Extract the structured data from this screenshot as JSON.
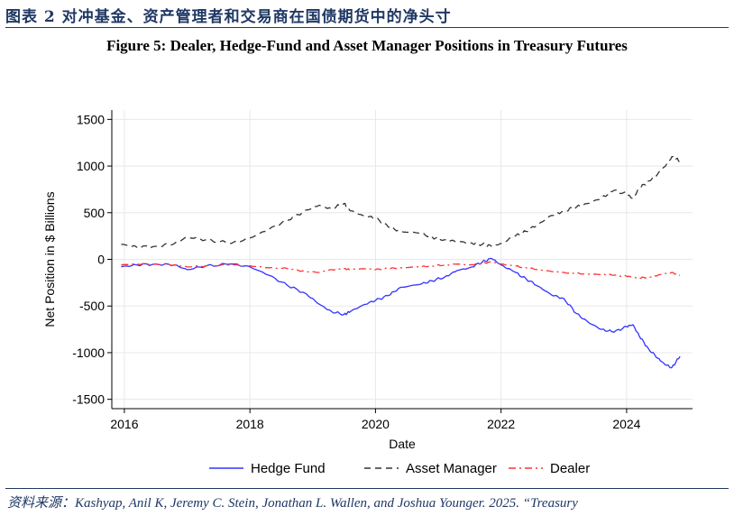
{
  "header": {
    "text": "图表 2  对冲基金、资产管理者和交易商在国债期货中的净头寸"
  },
  "figure_title": "Figure 5: Dealer, Hedge-Fund and Asset Manager Positions in Treasury Futures",
  "source_text": "资料来源：Kashyap, Anil K, Jeremy C. Stein, Jonathan L. Wallen, and Joshua Younger. 2025. “Treasury",
  "colors": {
    "header": "#1f3864",
    "hedge_fund": "#3333ff",
    "asset_manager": "#333333",
    "dealer": "#ff3333",
    "grid": "#e8e8e8"
  },
  "chart_data": {
    "type": "line",
    "xlabel": "Date",
    "ylabel": "Net Position in $ Billions",
    "xlim": [
      2015.8,
      2025.05
    ],
    "ylim": [
      -1600,
      1600
    ],
    "x_ticks": [
      2016,
      2018,
      2020,
      2022,
      2024
    ],
    "y_ticks": [
      1500,
      1000,
      500,
      0,
      -500,
      -1000,
      -1500
    ],
    "x_tick_labels": [
      "2016",
      "2018",
      "2020",
      "2022",
      "2024"
    ],
    "y_tick_labels": [
      "1500",
      "1000",
      "500",
      "0",
      "-500",
      "-1000",
      "-1500"
    ],
    "grid": true,
    "legend_position": "bottom",
    "series": [
      {
        "name": "Hedge Fund",
        "style": "solid",
        "x": [
          2015.95,
          2016.2,
          2016.5,
          2016.8,
          2017.0,
          2017.3,
          2017.7,
          2018.0,
          2018.3,
          2018.6,
          2018.9,
          2019.1,
          2019.3,
          2019.5,
          2019.6,
          2019.8,
          2020.0,
          2020.2,
          2020.4,
          2020.7,
          2020.9,
          2021.1,
          2021.3,
          2021.5,
          2021.7,
          2021.85,
          2022.0,
          2022.2,
          2022.4,
          2022.6,
          2022.8,
          2023.0,
          2023.2,
          2023.4,
          2023.6,
          2023.8,
          2024.0,
          2024.1,
          2024.2,
          2024.35,
          2024.5,
          2024.6,
          2024.72,
          2024.85
        ],
        "values": [
          -80,
          -60,
          -50,
          -60,
          -110,
          -70,
          -50,
          -80,
          -170,
          -280,
          -370,
          -480,
          -560,
          -590,
          -560,
          -490,
          -440,
          -390,
          -300,
          -270,
          -230,
          -190,
          -120,
          -90,
          -30,
          10,
          -60,
          -130,
          -210,
          -290,
          -380,
          -420,
          -580,
          -680,
          -750,
          -780,
          -720,
          -700,
          -820,
          -960,
          -1060,
          -1120,
          -1160,
          -1040
        ]
      },
      {
        "name": "Asset Manager",
        "style": "dashed",
        "x": [
          2015.95,
          2016.2,
          2016.5,
          2016.8,
          2017.0,
          2017.3,
          2017.7,
          2018.0,
          2018.3,
          2018.6,
          2018.9,
          2019.1,
          2019.3,
          2019.5,
          2019.6,
          2019.8,
          2020.0,
          2020.2,
          2020.4,
          2020.7,
          2020.9,
          2021.1,
          2021.3,
          2021.5,
          2021.7,
          2021.85,
          2022.0,
          2022.2,
          2022.4,
          2022.6,
          2022.8,
          2023.0,
          2023.2,
          2023.4,
          2023.6,
          2023.8,
          2024.0,
          2024.1,
          2024.2,
          2024.35,
          2024.5,
          2024.6,
          2024.72,
          2024.85
        ],
        "values": [
          160,
          130,
          140,
          170,
          240,
          210,
          170,
          230,
          320,
          420,
          530,
          580,
          540,
          600,
          520,
          470,
          440,
          350,
          300,
          280,
          240,
          210,
          190,
          180,
          160,
          140,
          170,
          240,
          300,
          380,
          470,
          520,
          560,
          600,
          660,
          740,
          700,
          650,
          760,
          840,
          920,
          990,
          1100,
          1050
        ]
      },
      {
        "name": "Dealer",
        "style": "dashdot",
        "x": [
          2015.95,
          2016.2,
          2016.5,
          2016.8,
          2017.0,
          2017.3,
          2017.7,
          2018.0,
          2018.3,
          2018.6,
          2018.9,
          2019.1,
          2019.3,
          2019.5,
          2019.6,
          2019.8,
          2020.0,
          2020.2,
          2020.4,
          2020.7,
          2020.9,
          2021.1,
          2021.3,
          2021.5,
          2021.7,
          2021.85,
          2022.0,
          2022.2,
          2022.4,
          2022.6,
          2022.8,
          2023.0,
          2023.2,
          2023.4,
          2023.6,
          2023.8,
          2024.0,
          2024.1,
          2024.2,
          2024.35,
          2024.5,
          2024.6,
          2024.72,
          2024.85
        ],
        "values": [
          -60,
          -50,
          -50,
          -60,
          -80,
          -70,
          -60,
          -70,
          -90,
          -100,
          -130,
          -140,
          -110,
          -100,
          -110,
          -100,
          -110,
          -100,
          -90,
          -80,
          -70,
          -60,
          -50,
          -60,
          -40,
          -30,
          -50,
          -70,
          -90,
          -110,
          -130,
          -140,
          -150,
          -160,
          -160,
          -170,
          -180,
          -190,
          -200,
          -190,
          -170,
          -150,
          -140,
          -170
        ]
      }
    ]
  }
}
